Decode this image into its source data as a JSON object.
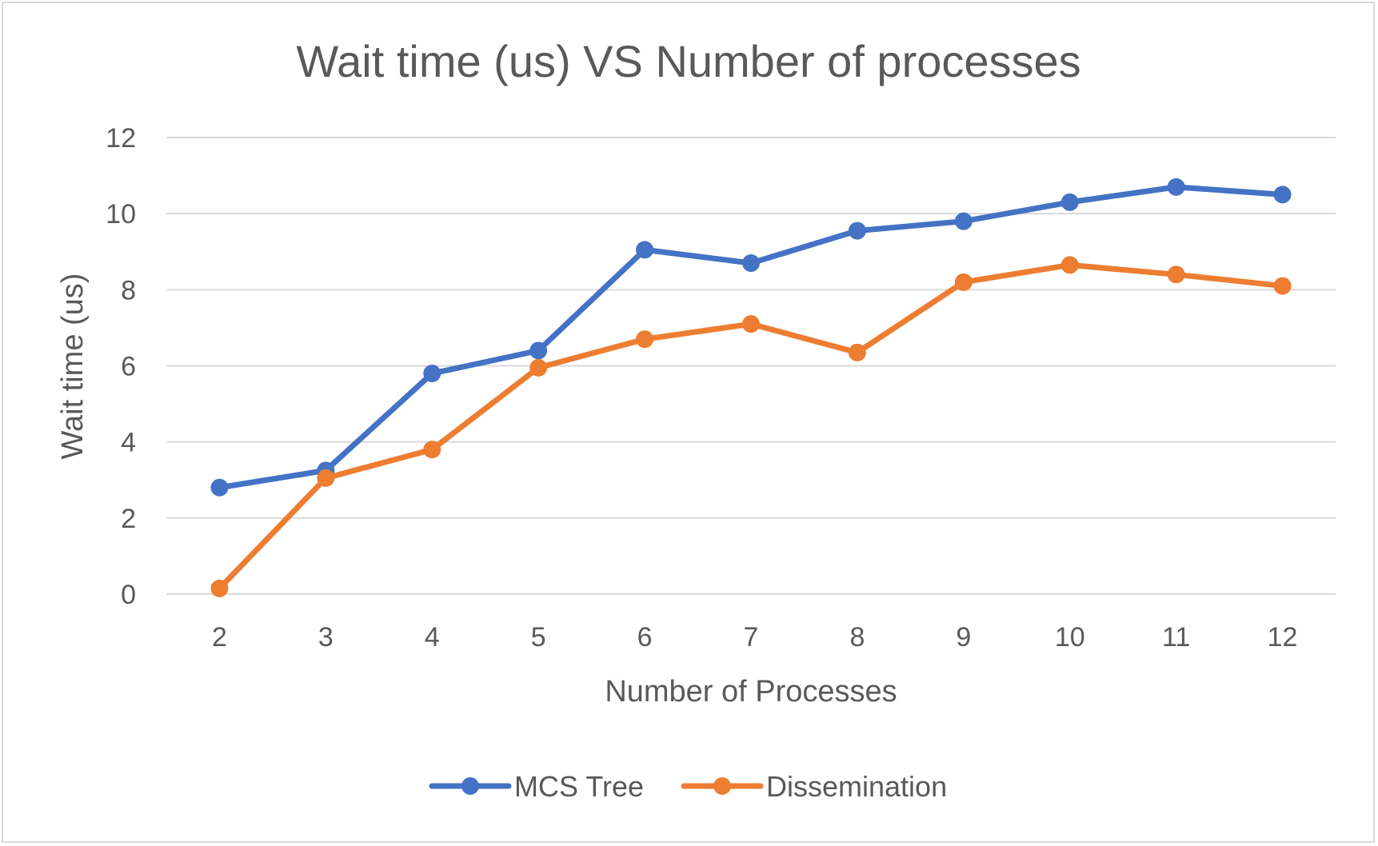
{
  "chart_data": {
    "type": "line",
    "title": "Wait time (us) VS Number of processes",
    "xlabel": "Number of Processes",
    "ylabel": "Wait time (us)",
    "categories": [
      "2",
      "3",
      "4",
      "5",
      "6",
      "7",
      "8",
      "9",
      "10",
      "11",
      "12"
    ],
    "ylim": [
      0,
      12
    ],
    "yticks": [
      "0",
      "2",
      "4",
      "6",
      "8",
      "10",
      "12"
    ],
    "grid": true,
    "legend_position": "bottom",
    "series": [
      {
        "name": "MCS Tree",
        "color": "#4472C4",
        "values": [
          2.8,
          3.25,
          5.8,
          6.4,
          9.05,
          8.7,
          9.55,
          9.8,
          10.3,
          10.7,
          10.5
        ]
      },
      {
        "name": "Dissemination",
        "color": "#ED7D31",
        "values": [
          0.15,
          3.05,
          3.8,
          5.95,
          6.7,
          7.1,
          6.35,
          8.2,
          8.65,
          8.4,
          8.1
        ]
      }
    ]
  }
}
